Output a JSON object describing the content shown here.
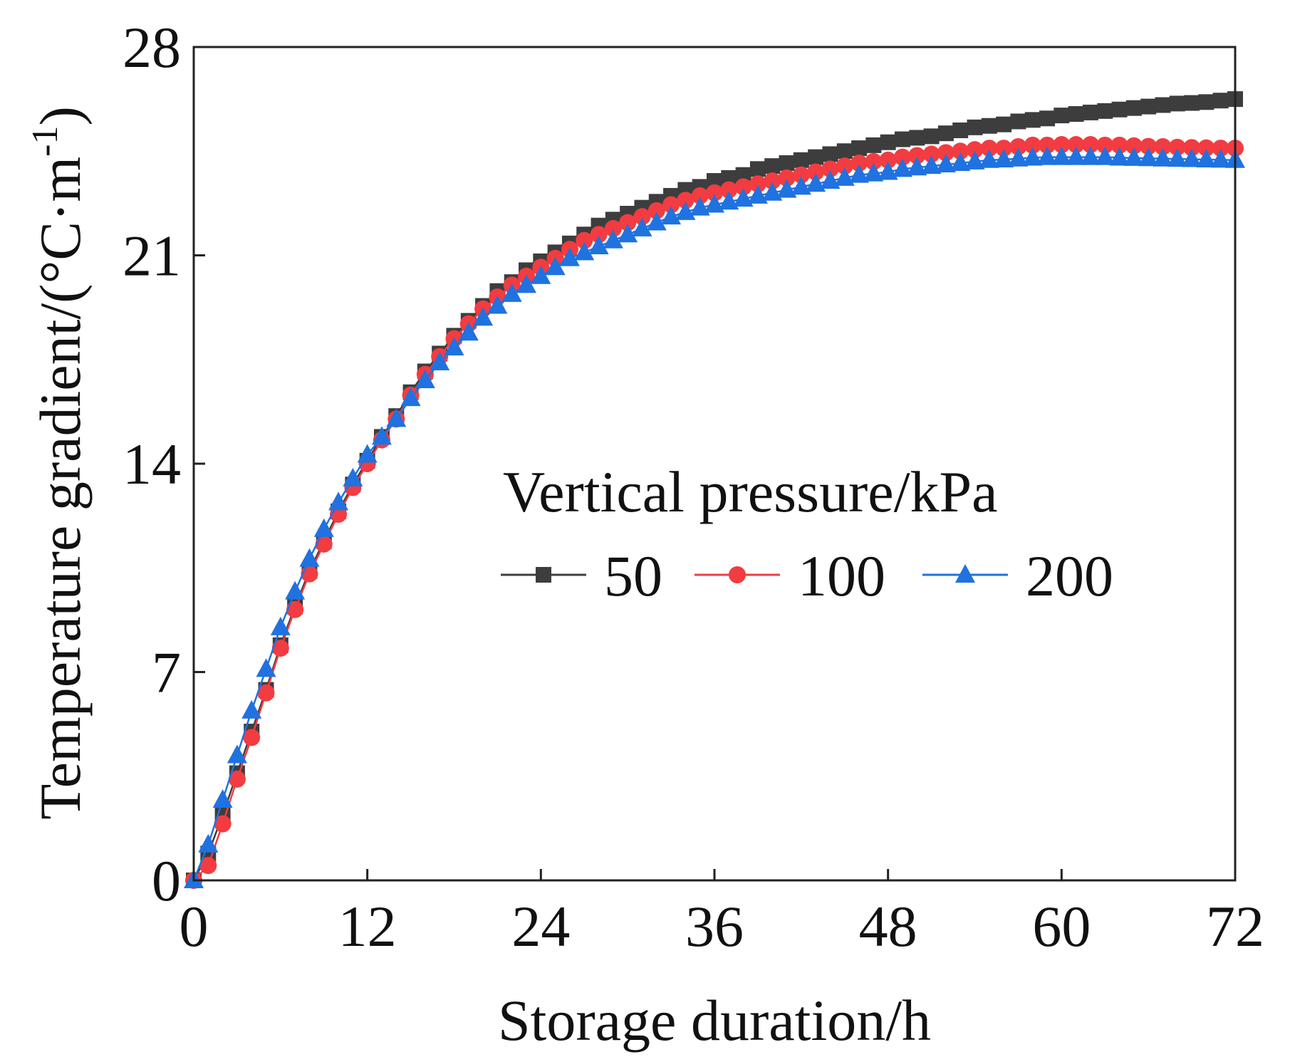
{
  "chart_data": {
    "type": "line",
    "title": "",
    "xlabel": "Storage duration/h",
    "ylabel_main": "Temperature gradient/(°C·m",
    "ylabel_sup": "-1",
    "ylabel_close": ")",
    "xlim": [
      0,
      72
    ],
    "ylim": [
      0,
      28
    ],
    "xticks": [
      0,
      12,
      24,
      36,
      48,
      60,
      72
    ],
    "yticks": [
      0,
      7,
      14,
      21,
      28
    ],
    "grid": false,
    "legend": {
      "title": "Vertical pressure/kPa",
      "placement": "center-right",
      "orientation": "horizontal"
    },
    "x": [
      0,
      1,
      2,
      3,
      4,
      5,
      6,
      7,
      8,
      9,
      10,
      11,
      12,
      13,
      14,
      15,
      16,
      17,
      18,
      19,
      20,
      21,
      22,
      23,
      24,
      25,
      26,
      27,
      28,
      29,
      30,
      31,
      32,
      33,
      34,
      35,
      36,
      37,
      38,
      39,
      40,
      41,
      42,
      43,
      44,
      45,
      46,
      47,
      48,
      49,
      50,
      51,
      52,
      53,
      54,
      55,
      56,
      57,
      58,
      59,
      60,
      61,
      62,
      63,
      64,
      65,
      66,
      67,
      68,
      69,
      70,
      71,
      72
    ],
    "series": [
      {
        "name": "50",
        "color": "#3d3d3d",
        "marker": "square",
        "values": [
          0.0,
          0.9,
          2.2,
          3.6,
          5.0,
          6.4,
          7.9,
          9.2,
          10.4,
          11.4,
          12.4,
          13.3,
          14.1,
          14.9,
          15.6,
          16.4,
          17.1,
          17.7,
          18.3,
          18.8,
          19.3,
          19.8,
          20.1,
          20.5,
          20.8,
          21.1,
          21.4,
          21.7,
          22.0,
          22.2,
          22.4,
          22.6,
          22.8,
          23.0,
          23.2,
          23.3,
          23.5,
          23.6,
          23.7,
          23.9,
          24.0,
          24.1,
          24.2,
          24.3,
          24.4,
          24.5,
          24.6,
          24.7,
          24.8,
          24.9,
          24.95,
          25.0,
          25.1,
          25.2,
          25.3,
          25.35,
          25.4,
          25.5,
          25.55,
          25.6,
          25.7,
          25.75,
          25.8,
          25.85,
          25.9,
          25.95,
          26.0,
          26.05,
          26.1,
          26.12,
          26.15,
          26.2,
          26.25
        ]
      },
      {
        "name": "100",
        "color": "#f23c41",
        "marker": "circle",
        "values": [
          0.0,
          0.5,
          1.9,
          3.4,
          4.8,
          6.3,
          7.8,
          9.1,
          10.3,
          11.3,
          12.3,
          13.2,
          14.0,
          14.8,
          15.5,
          16.3,
          17.0,
          17.6,
          18.2,
          18.7,
          19.2,
          19.6,
          20.0,
          20.3,
          20.6,
          20.9,
          21.2,
          21.5,
          21.7,
          21.9,
          22.1,
          22.3,
          22.5,
          22.7,
          22.85,
          23.0,
          23.1,
          23.2,
          23.3,
          23.4,
          23.5,
          23.6,
          23.7,
          23.8,
          23.9,
          24.0,
          24.1,
          24.15,
          24.2,
          24.3,
          24.35,
          24.4,
          24.45,
          24.5,
          24.55,
          24.6,
          24.6,
          24.65,
          24.7,
          24.7,
          24.72,
          24.72,
          24.72,
          24.7,
          24.7,
          24.68,
          24.66,
          24.65,
          24.63,
          24.62,
          24.61,
          24.6,
          24.6
        ]
      },
      {
        "name": "200",
        "color": "#1f72e0",
        "marker": "triangle",
        "values": [
          0.0,
          1.2,
          2.7,
          4.2,
          5.7,
          7.1,
          8.5,
          9.7,
          10.8,
          11.8,
          12.7,
          13.5,
          14.3,
          14.9,
          15.5,
          16.2,
          16.8,
          17.4,
          17.9,
          18.4,
          18.9,
          19.3,
          19.7,
          20.0,
          20.3,
          20.6,
          20.9,
          21.1,
          21.3,
          21.5,
          21.7,
          21.9,
          22.1,
          22.3,
          22.45,
          22.6,
          22.7,
          22.8,
          22.9,
          23.0,
          23.1,
          23.2,
          23.3,
          23.4,
          23.5,
          23.6,
          23.7,
          23.75,
          23.8,
          23.9,
          23.95,
          24.0,
          24.05,
          24.1,
          24.15,
          24.2,
          24.22,
          24.25,
          24.28,
          24.3,
          24.3,
          24.3,
          24.3,
          24.3,
          24.28,
          24.27,
          24.26,
          24.25,
          24.24,
          24.23,
          24.22,
          24.21,
          24.2
        ]
      }
    ]
  }
}
